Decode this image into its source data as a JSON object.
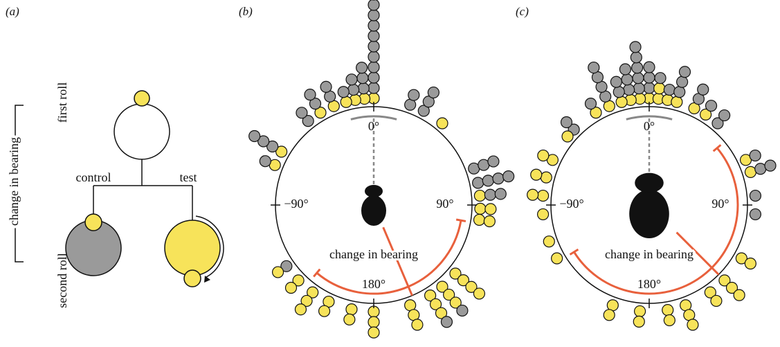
{
  "panel_a": {
    "label": "(a)",
    "first_roll": "first roll",
    "change_in_bearing": "change in bearing",
    "second_roll": "second roll",
    "control": "control",
    "test": "test"
  },
  "panel_b": {
    "label": "(b)",
    "deg_0": "0°",
    "deg_minus_90": "−90°",
    "deg_90": "90°",
    "deg_180": "180°",
    "annotation": "change in bearing"
  },
  "panel_c": {
    "label": "(c)",
    "deg_0": "0°",
    "deg_minus_90": "−90°",
    "deg_90": "90°",
    "deg_180": "180°",
    "annotation": "change in bearing"
  }
}
